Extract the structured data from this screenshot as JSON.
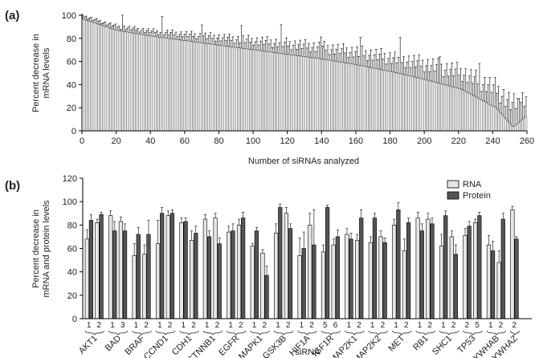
{
  "chart_data": [
    {
      "panel_label": "(a)",
      "type": "bar",
      "xlabel": "Number of siRNAs analyzed",
      "ylabel_lines": [
        "Percent decrease in",
        "mRNA levels"
      ],
      "xlim": [
        0,
        260
      ],
      "ylim": [
        0,
        100
      ],
      "x_ticks": [
        "0",
        "20",
        "40",
        "60",
        "80",
        "100",
        "120",
        "140",
        "160",
        "180",
        "200",
        "220",
        "240",
        "260"
      ],
      "y_ticks": [
        "0",
        "20",
        "40",
        "60",
        "80",
        "100"
      ],
      "n_bars": 258,
      "profile_x": [
        0,
        20,
        40,
        60,
        80,
        100,
        120,
        140,
        160,
        180,
        200,
        220,
        240,
        250,
        258
      ],
      "profile_y": [
        97,
        87,
        82,
        78,
        74,
        70,
        66,
        62,
        57,
        51,
        44,
        36,
        20,
        3,
        13
      ],
      "error_profile_x": [
        0,
        40,
        80,
        120,
        160,
        200,
        230,
        250,
        258
      ],
      "error_profile_y": [
        3,
        5,
        8,
        11,
        13,
        16,
        18,
        22,
        20
      ],
      "fill": "#ffffff",
      "stroke": "#000000"
    },
    {
      "panel_label": "(b)",
      "type": "bar",
      "xlabel": "siRNA",
      "ylabel_lines": [
        "Percent decrease in",
        "mRNA and protein levels"
      ],
      "ylim": [
        0,
        120
      ],
      "y_ticks": [
        "0",
        "20",
        "40",
        "60",
        "80",
        "100",
        "120"
      ],
      "legend_position": "top-right",
      "series": [
        {
          "name": "RNA",
          "color": "#e6e6e6"
        },
        {
          "name": "Protein",
          "color": "#555555"
        }
      ],
      "genes": [
        {
          "name": "AKT1",
          "ids": [
            "1",
            "2"
          ],
          "rna": [
            68,
            82
          ],
          "protein": [
            84,
            89
          ],
          "rna_err": [
            8,
            3
          ],
          "protein_err": [
            5,
            2
          ]
        },
        {
          "name": "BAD",
          "ids": [
            "1",
            "3"
          ],
          "rna": [
            88,
            83
          ],
          "protein": [
            75,
            75
          ],
          "rna_err": [
            4,
            4
          ],
          "protein_err": [
            8,
            6
          ]
        },
        {
          "name": "BRAF",
          "ids": [
            "1",
            "2"
          ],
          "rna": [
            54,
            55
          ],
          "protein": [
            72,
            72
          ],
          "rna_err": [
            10,
            8
          ],
          "protein_err": [
            6,
            12
          ]
        },
        {
          "name": "CCND1",
          "ids": [
            "1",
            "2"
          ],
          "rna": [
            64,
            88
          ],
          "protein": [
            90,
            90
          ],
          "rna_err": [
            20,
            4
          ],
          "protein_err": [
            5,
            3
          ]
        },
        {
          "name": "CDH1",
          "ids": [
            "1",
            "2"
          ],
          "rna": [
            82,
            67
          ],
          "protein": [
            83,
            73
          ],
          "rna_err": [
            4,
            8
          ],
          "protein_err": [
            3,
            6
          ]
        },
        {
          "name": "CTNNB1",
          "ids": [
            "1",
            "2"
          ],
          "rna": [
            85,
            86
          ],
          "protein": [
            70,
            64
          ],
          "rna_err": [
            4,
            4
          ],
          "protein_err": [
            5,
            5
          ]
        },
        {
          "name": "EGFR",
          "ids": [
            "1",
            "2"
          ],
          "rna": [
            74,
            80
          ],
          "protein": [
            75,
            86
          ],
          "rna_err": [
            5,
            5
          ],
          "protein_err": [
            6,
            5
          ]
        },
        {
          "name": "MAPK1",
          "ids": [
            "1",
            "2"
          ],
          "rna": [
            62,
            56
          ],
          "protein": [
            75,
            37
          ],
          "rna_err": [
            2,
            3
          ],
          "protein_err": [
            3,
            8
          ]
        },
        {
          "name": "GSK3B",
          "ids": [
            "1",
            "2"
          ],
          "rna": [
            73,
            90
          ],
          "protein": [
            95,
            77
          ],
          "rna_err": [
            8,
            5
          ],
          "protein_err": [
            3,
            4
          ]
        },
        {
          "name": "HIF1A",
          "ids": [
            "1",
            "2"
          ],
          "rna": [
            54,
            80
          ],
          "protein": [
            60,
            63
          ],
          "rna_err": [
            15,
            10
          ],
          "protein_err": [
            14,
            30
          ]
        },
        {
          "name": "IGF1R",
          "ids": [
            "5",
            "6"
          ],
          "rna": [
            57,
            63
          ],
          "protein": [
            95,
            70
          ],
          "rna_err": [
            6,
            5
          ],
          "protein_err": [
            2,
            6
          ]
        },
        {
          "name": "MAP2K1",
          "ids": [
            "1",
            "2"
          ],
          "rna": [
            72,
            67
          ],
          "protein": [
            68,
            86
          ],
          "rna_err": [
            5,
            5
          ],
          "protein_err": [
            5,
            7
          ]
        },
        {
          "name": "MAP2K2",
          "ids": [
            "1",
            "2"
          ],
          "rna": [
            65,
            70
          ],
          "protein": [
            86,
            65
          ],
          "rna_err": [
            5,
            5
          ],
          "protein_err": [
            4,
            4
          ]
        },
        {
          "name": "MET",
          "ids": [
            "1",
            "2"
          ],
          "rna": [
            80,
            58
          ],
          "protein": [
            93,
            82
          ],
          "rna_err": [
            5,
            10
          ],
          "protein_err": [
            6,
            4
          ]
        },
        {
          "name": "RB1",
          "ids": [
            "1",
            "2"
          ],
          "rna": [
            86,
            85
          ],
          "protein": [
            75,
            81
          ],
          "rna_err": [
            5,
            5
          ],
          "protein_err": [
            6,
            5
          ]
        },
        {
          "name": "SHC1",
          "ids": [
            "1",
            "2"
          ],
          "rna": [
            62,
            70
          ],
          "protein": [
            88,
            55
          ],
          "rna_err": [
            10,
            5
          ],
          "protein_err": [
            4,
            8
          ]
        },
        {
          "name": "TP53",
          "ids": [
            "2",
            "5"
          ],
          "rna": [
            71,
            82
          ],
          "protein": [
            79,
            88
          ],
          "rna_err": [
            6,
            3
          ],
          "protein_err": [
            4,
            3
          ]
        },
        {
          "name": "YWHAB",
          "ids": [
            "1",
            "2"
          ],
          "rna": [
            63,
            48
          ],
          "protein": [
            58,
            85
          ],
          "rna_err": [
            8,
            10
          ],
          "protein_err": [
            8,
            5
          ]
        },
        {
          "name": "YWHAZ",
          "ids": [
            "2"
          ],
          "rna": [
            93
          ],
          "protein": [
            68
          ],
          "rna_err": [
            3
          ],
          "protein_err": [
            2
          ]
        }
      ]
    }
  ]
}
